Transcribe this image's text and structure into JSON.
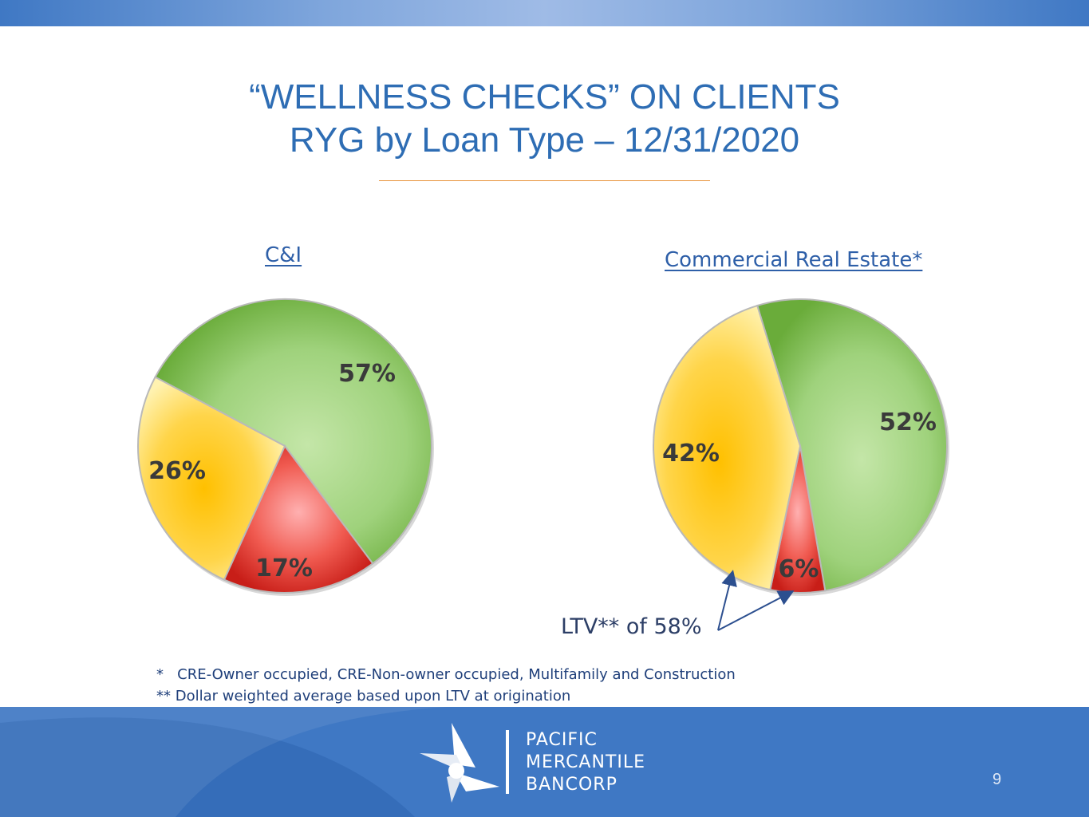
{
  "title_line1": "“WELLNESS CHECKS” ON CLIENTS",
  "title_line2": "RYG by Loan Type – 12/31/2020",
  "chart_data": [
    {
      "type": "pie",
      "title": "C&I",
      "slices": [
        {
          "label": "57%",
          "value": 57,
          "color": "#7ab648"
        },
        {
          "label": "17%",
          "value": 17,
          "color": "#e8302a"
        },
        {
          "label": "26%",
          "value": 26,
          "color": "#ffc000"
        }
      ]
    },
    {
      "type": "pie",
      "title": "Commercial Real Estate*",
      "slices": [
        {
          "label": "52%",
          "value": 52,
          "color": "#7ab648"
        },
        {
          "label": "6%",
          "value": 6,
          "color": "#e8302a"
        },
        {
          "label": "42%",
          "value": 42,
          "color": "#ffc000"
        }
      ],
      "annotation": "LTV** of 58%"
    }
  ],
  "footnotes": [
    "*   CRE-Owner occupied, CRE-Non-owner occupied, Multifamily and Construction",
    "** Dollar weighted average based upon LTV at origination"
  ],
  "logo": {
    "line1": "PACIFIC",
    "line2": "MERCANTILE",
    "line3": "BANCORP"
  },
  "page_number": "9",
  "colors": {
    "accent": "#2e6db4",
    "footer": "#3f78c4",
    "rule": "#e8933a"
  }
}
